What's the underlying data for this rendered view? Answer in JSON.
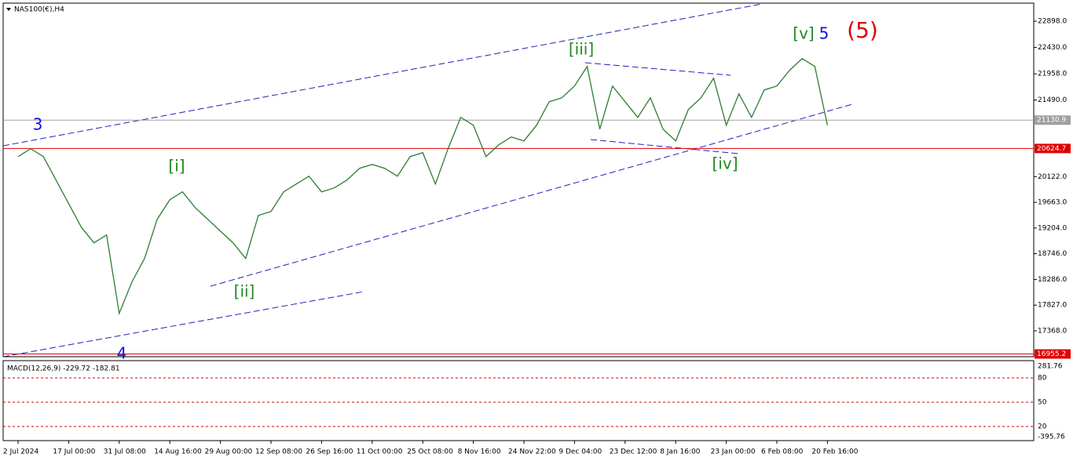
{
  "chart_data": {
    "type": "line",
    "title": "NAS100(€),H4",
    "categories": [
      "2 Jul 2024",
      null,
      null,
      null,
      "17 Jul 00:00",
      null,
      null,
      null,
      "31 Jul 08:00",
      null,
      null,
      null,
      "14 Aug 16:00",
      null,
      null,
      null,
      "29 Aug 00:00",
      null,
      null,
      null,
      "12 Sep 08:00",
      null,
      null,
      null,
      "26 Sep 16:00",
      null,
      null,
      null,
      "11 Oct 00:00",
      null,
      null,
      null,
      "25 Oct 08:00",
      null,
      null,
      null,
      "8 Nov 16:00",
      null,
      null,
      null,
      "24 Nov 22:00",
      null,
      null,
      null,
      "9 Dec 04:00",
      null,
      null,
      null,
      "23 Dec 12:00",
      null,
      null,
      null,
      "8 Jan 16:00",
      null,
      null,
      null,
      "23 Jan 00:00",
      null,
      null,
      null,
      "6 Feb 08:00",
      null,
      null,
      null,
      "20 Feb 16:00"
    ],
    "values": [
      20480,
      20620,
      20480,
      20060,
      19640,
      19220,
      18940,
      19080,
      17680,
      18240,
      18660,
      19360,
      19710,
      19850,
      19570,
      19360,
      19150,
      18940,
      18660,
      19430,
      19500,
      19850,
      19990,
      20130,
      19850,
      19920,
      20060,
      20270,
      20340,
      20270,
      20130,
      20480,
      20550,
      19990,
      20620,
      21180,
      21040,
      20480,
      20690,
      20830,
      20760,
      21040,
      21460,
      21530,
      21740,
      22090,
      20970,
      21740,
      21460,
      21180,
      21530,
      20970,
      20760,
      21320,
      21530,
      21880,
      21040,
      21600,
      21180,
      21670,
      21740,
      22020,
      22230,
      22090,
      21040
    ],
    "color": "#2e7d32",
    "ylim": [
      16906,
      23206
    ],
    "yticks": [
      {
        "value": 22898,
        "label": "22898.0"
      },
      {
        "value": 22430,
        "label": "22430.0"
      },
      {
        "value": 21958,
        "label": "21958.0"
      },
      {
        "value": 21490,
        "label": "21490.0"
      },
      {
        "value": 20122,
        "label": "20122.0"
      },
      {
        "value": 19663,
        "label": "19663.0"
      },
      {
        "value": 19204,
        "label": "19204.0"
      },
      {
        "value": 18746,
        "label": "18746.0"
      },
      {
        "value": 18286,
        "label": "18286.0"
      },
      {
        "value": 17827,
        "label": "17827.0"
      },
      {
        "value": 17368,
        "label": "17368.0"
      }
    ],
    "price_lines": [
      {
        "value": 21130.9,
        "color": "#a0a0a0"
      },
      {
        "value": 20624.7,
        "color": "#e00000"
      },
      {
        "value": 16955.2,
        "color": "#e00000"
      }
    ],
    "annotations": [
      {
        "text": "3",
        "color": "#1010e0"
      },
      {
        "text": "4",
        "color": "#1010e0"
      },
      {
        "text": "[i]",
        "color": "#1e8a1e"
      },
      {
        "text": "[ii]",
        "color": "#1e8a1e"
      },
      {
        "text": "[iii]",
        "color": "#1e8a1e"
      },
      {
        "text": "[iv]",
        "color": "#1e8a1e"
      },
      {
        "text": "[v]",
        "color": "#1e8a1e"
      },
      {
        "text": "5",
        "color": "#1010e0"
      },
      {
        "text": "(5)",
        "color": "#e00000"
      }
    ]
  },
  "macd": {
    "label": "MACD(12,26,9) -229.72 -182.81",
    "levels": [
      "281.76",
      "80",
      "50",
      "20",
      "-395.76"
    ]
  }
}
